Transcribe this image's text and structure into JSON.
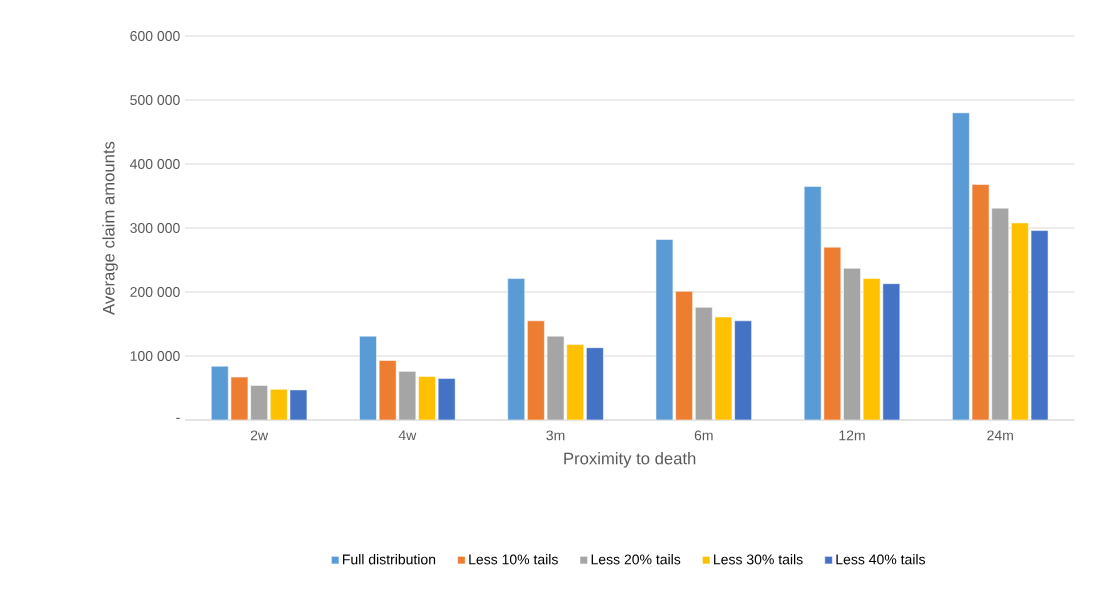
{
  "chart_data": {
    "type": "bar",
    "xlabel": "Proximity to death",
    "ylabel": "Average claim amounts",
    "categories": [
      "2w",
      "4w",
      "3m",
      "6m",
      "12m",
      "24m"
    ],
    "series": [
      {
        "name": "Full distribution",
        "color": "#5b9bd5",
        "values": [
          84000,
          131000,
          221000,
          282000,
          365000,
          480000
        ]
      },
      {
        "name": "Less 10% tails",
        "color": "#ed7d31",
        "values": [
          67000,
          93000,
          155000,
          201000,
          270000,
          368000
        ]
      },
      {
        "name": "Less 20% tails",
        "color": "#a5a5a5",
        "values": [
          54000,
          76000,
          131000,
          176000,
          237000,
          331000
        ]
      },
      {
        "name": "Less 30% tails",
        "color": "#ffc000",
        "values": [
          48000,
          68000,
          118000,
          161000,
          221000,
          308000
        ]
      },
      {
        "name": "Less 40% tails",
        "color": "#4472c4",
        "values": [
          47000,
          65000,
          113000,
          155000,
          213000,
          296000
        ]
      }
    ],
    "ylim": [
      0,
      600000
    ],
    "yticks": [
      {
        "value": 0,
        "label": "-"
      },
      {
        "value": 100000,
        "label": "100 000"
      },
      {
        "value": 200000,
        "label": "200 000"
      },
      {
        "value": 300000,
        "label": "300 000"
      },
      {
        "value": 400000,
        "label": "400 000"
      },
      {
        "value": 500000,
        "label": "500 000"
      },
      {
        "value": 600000,
        "label": "600 000"
      }
    ],
    "grid": "y",
    "legend": "bottom"
  }
}
